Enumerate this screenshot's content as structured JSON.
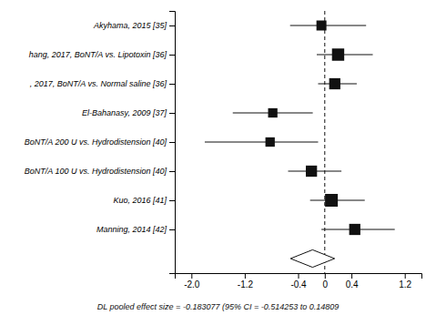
{
  "chart_data": {
    "type": "forest",
    "categories": [
      "Akyhama, 2015 [35]",
      "hang, 2017, BoNT/A vs. Lipotoxin [36]",
      ", 2017, BoNT/A vs. Normal saline [36]",
      "El-Bahanasy, 2009 [37]",
      "BoNT/A 200 U vs. Hydrodistension [40]",
      "BoNT/A 100 U vs. Hydrodistension [40]",
      "Kuo, 2016 [41]",
      "Manning, 2014 [42]"
    ],
    "values": [
      -0.05,
      0.2,
      0.15,
      -0.78,
      -0.82,
      -0.2,
      0.1,
      0.45
    ],
    "ci_lower": [
      -0.52,
      -0.12,
      -0.1,
      -1.38,
      -1.8,
      -0.55,
      -0.22,
      -0.05
    ],
    "ci_upper": [
      0.62,
      0.72,
      0.48,
      -0.18,
      -0.1,
      0.25,
      0.6,
      1.05
    ],
    "box_sizes": [
      80,
      120,
      100,
      70,
      70,
      100,
      130,
      100
    ],
    "pooled": {
      "value": -0.183077,
      "ci_lower": -0.514253,
      "ci_upper": 0.14809
    },
    "reference_line": 0.0,
    "footnote": "DL pooled effect size = -0.183077  (95% CI = -0.514253 to 0.14809",
    "xlim": [
      -2.25,
      1.45
    ],
    "xticks": [
      {
        "value": -2.0,
        "label": "-2.0"
      },
      -1.2,
      -0.4,
      0,
      0.4,
      1.2
    ],
    "color": "#111111"
  }
}
